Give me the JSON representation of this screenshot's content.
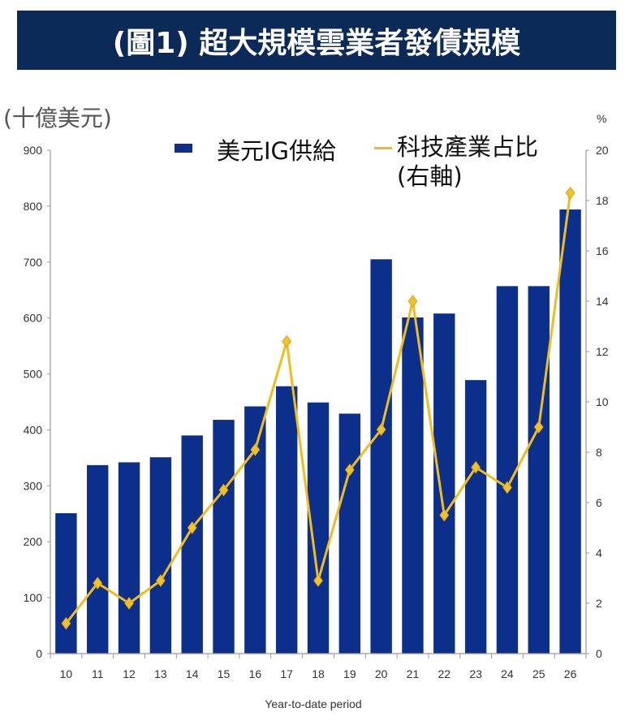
{
  "header": {
    "title": "(圖1) 超大規模雲業者發債規模"
  },
  "chart_data": {
    "type": "bar",
    "title": "(圖1) 超大規模雲業者發債規模",
    "ylabel": "(十億美元)",
    "y2label": "%",
    "xlabel": "Year-to-date period",
    "categories": [
      "10",
      "11",
      "12",
      "13",
      "14",
      "15",
      "16",
      "17",
      "18",
      "19",
      "20",
      "21",
      "22",
      "23",
      "24",
      "25",
      "26"
    ],
    "ylim": [
      0,
      900
    ],
    "yticks": [
      "0",
      "100",
      "200",
      "300",
      "400",
      "500",
      "600",
      "700",
      "800",
      "900"
    ],
    "y2lim": [
      0,
      20
    ],
    "y2ticks": [
      "0",
      "2",
      "4",
      "6",
      "8",
      "10",
      "12",
      "14",
      "16",
      "18",
      "20"
    ],
    "legend_position": "top",
    "series": [
      {
        "name": "美元IG供給",
        "type": "bar",
        "axis": "left",
        "color": "#0b2f8a",
        "values": [
          251,
          337,
          342,
          351,
          390,
          418,
          442,
          478,
          449,
          429,
          705,
          601,
          608,
          489,
          657,
          657,
          794
        ]
      },
      {
        "name": "科技產業占比",
        "name_suffix": "(右軸)",
        "type": "line",
        "axis": "right",
        "color": "#f0bd1c",
        "values": [
          1.2,
          2.8,
          2.0,
          2.9,
          5.0,
          6.5,
          8.1,
          12.4,
          2.9,
          7.3,
          8.9,
          14.0,
          5.5,
          7.4,
          6.6,
          9.0,
          18.3
        ]
      }
    ]
  }
}
